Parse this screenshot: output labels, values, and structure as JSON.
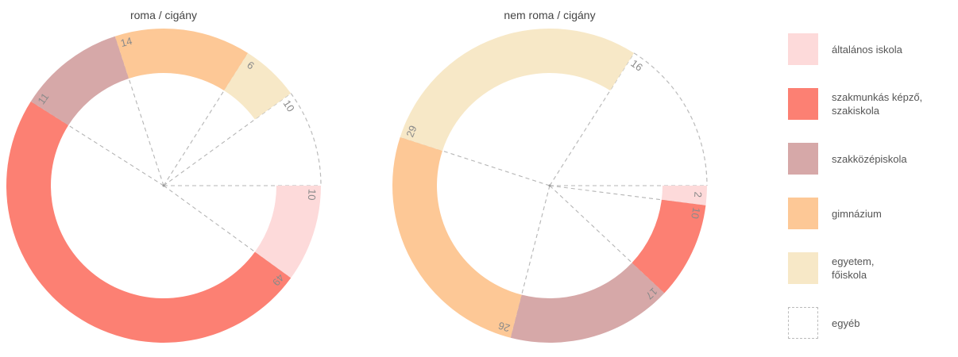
{
  "chart_data": {
    "type": "pie",
    "categories": [
      "általános iskola",
      "szakmunkás képző,\nszakiskola",
      "szakközépiskola",
      "gimnázium",
      "egyetem,\nfőiskola",
      "egyéb"
    ],
    "colors": [
      "#fddada",
      "#fc8073",
      "#d6a8a8",
      "#fdc896",
      "#f7e8c7",
      "#ffffff"
    ],
    "charts": [
      {
        "title": "roma / cigány",
        "values": [
          10,
          49,
          11,
          14,
          6,
          10
        ]
      },
      {
        "title": "nem roma / cigány",
        "values": [
          2,
          10,
          17,
          26,
          29,
          16
        ]
      }
    ],
    "legend_position": "right"
  }
}
